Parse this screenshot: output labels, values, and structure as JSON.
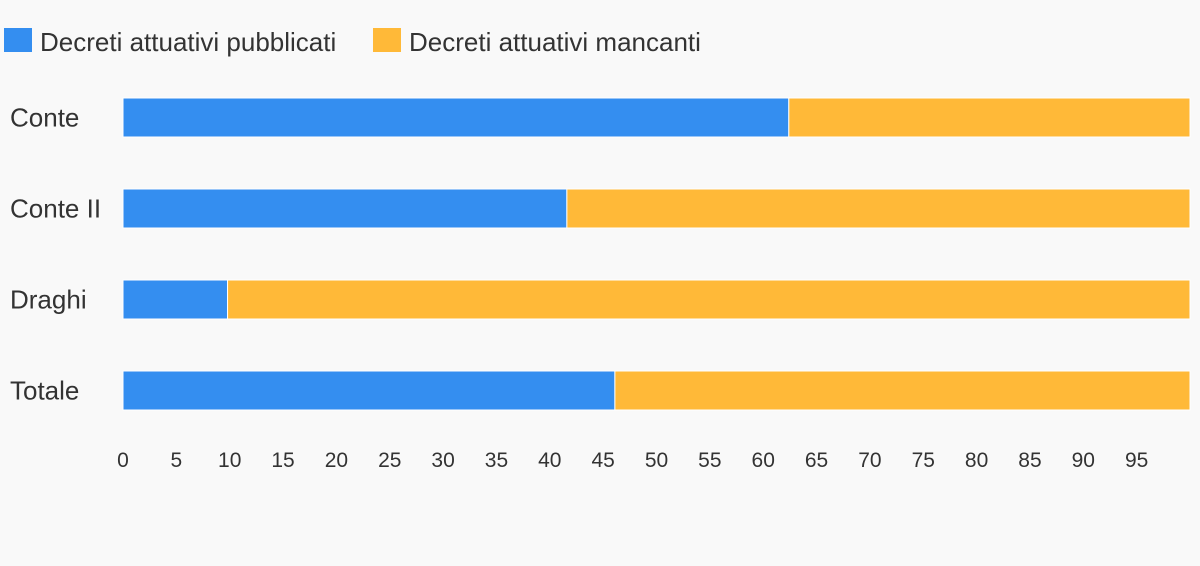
{
  "chart_data": {
    "type": "bar",
    "orientation": "horizontal",
    "stacked": true,
    "categories": [
      "Conte",
      "Conte II",
      "Draghi",
      "Totale"
    ],
    "series": [
      {
        "name": "Decreti attuativi pubblicati",
        "color": "#348ef0",
        "values": [
          62.4,
          41.6,
          9.8,
          46.1
        ]
      },
      {
        "name": "Decreti attuativi mancanti",
        "color": "#ffb938",
        "values": [
          37.6,
          58.4,
          90.2,
          53.9
        ]
      }
    ],
    "xlim": [
      0,
      100
    ],
    "x_ticks": [
      "0",
      "5",
      "10",
      "15",
      "20",
      "25",
      "30",
      "35",
      "40",
      "45",
      "50",
      "55",
      "60",
      "65",
      "70",
      "75",
      "80",
      "85",
      "90",
      "95"
    ],
    "legend_position": "top-left",
    "grid": false,
    "title": "",
    "xlabel": "",
    "ylabel": ""
  }
}
